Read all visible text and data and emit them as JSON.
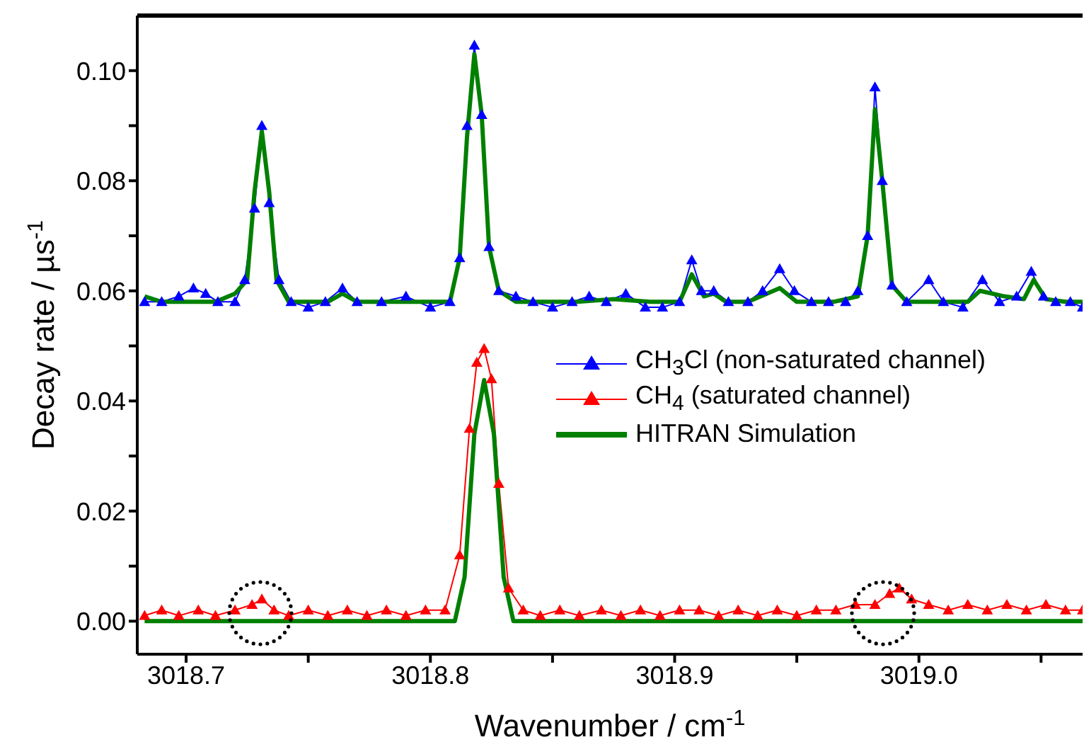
{
  "chart_data": {
    "type": "line",
    "xlabel": "Wavenumber / cm$^{-1}$",
    "ylabel": "Decay rate / µs$^{-1}$",
    "xlim": [
      3018.68,
      3019.067
    ],
    "ylim": [
      -0.006,
      0.11
    ],
    "xticks": [
      3018.7,
      {
        "value": 3018.75,
        "label": null
      },
      3018.8,
      {
        "value": 3018.85,
        "label": null
      },
      3018.9,
      {
        "value": 3018.95,
        "label": null
      },
      {
        "value": 3019,
        "label": "3019.0"
      },
      {
        "value": 3019.05,
        "label": null
      }
    ],
    "yticks": [
      {
        "value": 0,
        "label": "0.00"
      },
      {
        "value": 0.01,
        "label": null
      },
      {
        "value": 0.02,
        "label": "0.02"
      },
      {
        "value": 0.03,
        "label": null
      },
      {
        "value": 0.04,
        "label": "0.04"
      },
      {
        "value": 0.05,
        "label": null
      },
      {
        "value": 0.06,
        "label": "0.06"
      },
      {
        "value": 0.07,
        "label": null
      },
      {
        "value": 0.08,
        "label": "0.08"
      },
      {
        "value": 0.09,
        "label": null
      },
      {
        "value": 0.1,
        "label": "0.10"
      }
    ],
    "grid": false,
    "legend": "right",
    "marker": "triangle",
    "series": [
      {
        "name": "CH$_{3}$Cl (non-saturated channel)",
        "color": "#0000ff",
        "x": [
          3018.683,
          3018.69,
          3018.697,
          3018.703,
          3018.708,
          3018.713,
          3018.72,
          3018.724,
          3018.728,
          3018.731,
          3018.734,
          3018.738,
          3018.743,
          3018.75,
          3018.757,
          3018.764,
          3018.77,
          3018.78,
          3018.79,
          3018.8,
          3018.808,
          3018.812,
          3018.815,
          3018.818,
          3018.821,
          3018.824,
          3018.828,
          3018.835,
          3018.842,
          3018.85,
          3018.858,
          3018.865,
          3018.872,
          3018.88,
          3018.888,
          3018.895,
          3018.902,
          3018.907,
          3018.911,
          3018.916,
          3018.922,
          3018.93,
          3018.936,
          3018.943,
          3018.949,
          3018.956,
          3018.963,
          3018.97,
          3018.975,
          3018.979,
          3018.982,
          3018.985,
          3018.989,
          3018.995,
          3019.004,
          3019.01,
          3019.018,
          3019.026,
          3019.033,
          3019.04,
          3019.046,
          3019.051,
          3019.056,
          3019.062,
          3019.067
        ],
        "values": [
          0.058,
          0.058,
          0.059,
          0.0605,
          0.0595,
          0.058,
          0.058,
          0.062,
          0.075,
          0.09,
          0.076,
          0.062,
          0.058,
          0.057,
          0.058,
          0.0605,
          0.058,
          0.058,
          0.059,
          0.057,
          0.058,
          0.066,
          0.09,
          0.1046,
          0.092,
          0.068,
          0.06,
          0.059,
          0.058,
          0.057,
          0.058,
          0.059,
          0.058,
          0.0595,
          0.057,
          0.057,
          0.058,
          0.0656,
          0.06,
          0.06,
          0.058,
          0.058,
          0.06,
          0.064,
          0.06,
          0.058,
          0.058,
          0.058,
          0.06,
          0.07,
          0.097,
          0.08,
          0.061,
          0.058,
          0.062,
          0.058,
          0.057,
          0.062,
          0.058,
          0.059,
          0.0635,
          0.059,
          0.058,
          0.058,
          0.057
        ]
      },
      {
        "name": "CH$_{4}$ (saturated channel)",
        "color": "#ff0000",
        "x": [
          3018.683,
          3018.69,
          3018.697,
          3018.705,
          3018.712,
          3018.72,
          3018.727,
          3018.731,
          3018.736,
          3018.742,
          3018.75,
          3018.758,
          3018.766,
          3018.774,
          3018.782,
          3018.79,
          3018.798,
          3018.806,
          3018.812,
          3018.816,
          3018.819,
          3018.822,
          3018.825,
          3018.828,
          3018.832,
          3018.838,
          3018.845,
          3018.853,
          3018.861,
          3018.87,
          3018.878,
          3018.886,
          3018.894,
          3018.902,
          3018.91,
          3018.918,
          3018.926,
          3018.934,
          3018.942,
          3018.95,
          3018.958,
          3018.966,
          3018.974,
          3018.982,
          3018.988,
          3018.992,
          3018.997,
          3019.004,
          3019.012,
          3019.02,
          3019.028,
          3019.036,
          3019.044,
          3019.052,
          3019.06,
          3019.067
        ],
        "values": [
          0.001,
          0.002,
          0.001,
          0.002,
          0.001,
          0.002,
          0.003,
          0.004,
          0.002,
          0.001,
          0.002,
          0.001,
          0.002,
          0.001,
          0.002,
          0.001,
          0.002,
          0.002,
          0.012,
          0.035,
          0.047,
          0.0495,
          0.044,
          0.025,
          0.006,
          0.002,
          0.001,
          0.002,
          0.001,
          0.002,
          0.001,
          0.002,
          0.001,
          0.002,
          0.002,
          0.001,
          0.002,
          0.001,
          0.002,
          0.001,
          0.002,
          0.002,
          0.003,
          0.003,
          0.005,
          0.006,
          0.004,
          0.003,
          0.002,
          0.003,
          0.002,
          0.003,
          0.002,
          0.003,
          0.002,
          0.002
        ]
      },
      {
        "name": "HITRAN Simulation",
        "color": "#008000",
        "marker": "none",
        "x": [
          3018.683,
          3018.69,
          3018.7,
          3018.706,
          3018.712,
          3018.72,
          3018.725,
          3018.728,
          3018.731,
          3018.734,
          3018.737,
          3018.742,
          3018.75,
          3018.758,
          3018.764,
          3018.77,
          3018.78,
          3018.795,
          3018.808,
          3018.812,
          3018.815,
          3018.818,
          3018.821,
          3018.824,
          3018.828,
          3018.835,
          3018.845,
          3018.86,
          3018.875,
          3018.89,
          3018.902,
          3018.907,
          3018.912,
          3018.916,
          3018.921,
          3018.93,
          3018.943,
          3018.95,
          3018.965,
          3018.975,
          3018.979,
          3018.982,
          3018.985,
          3018.989,
          3018.995,
          3019.005,
          3019.02,
          3019.025,
          3019.035,
          3019.043,
          3019.047,
          3019.052,
          3019.06,
          3019.067
        ],
        "values": [
          0.059,
          0.058,
          0.058,
          0.058,
          0.058,
          0.0595,
          0.062,
          0.078,
          0.089,
          0.078,
          0.062,
          0.058,
          0.058,
          0.058,
          0.0595,
          0.058,
          0.058,
          0.058,
          0.058,
          0.066,
          0.088,
          0.103,
          0.092,
          0.068,
          0.06,
          0.058,
          0.058,
          0.058,
          0.0585,
          0.058,
          0.058,
          0.063,
          0.059,
          0.0595,
          0.058,
          0.058,
          0.0605,
          0.058,
          0.058,
          0.059,
          0.07,
          0.093,
          0.08,
          0.061,
          0.058,
          0.058,
          0.058,
          0.06,
          0.059,
          0.0585,
          0.062,
          0.0585,
          0.058,
          0.058
        ]
      },
      {
        "color": "#008000",
        "marker": "none",
        "x": [
          3018.683,
          3018.75,
          3018.81,
          3018.814,
          3018.818,
          3018.822,
          3018.826,
          3018.83,
          3018.834,
          3018.9,
          3019.0,
          3019.067
        ],
        "values": [
          0,
          0,
          0,
          0.008,
          0.034,
          0.0438,
          0.034,
          0.008,
          0,
          0,
          0,
          0
        ]
      }
    ]
  }
}
